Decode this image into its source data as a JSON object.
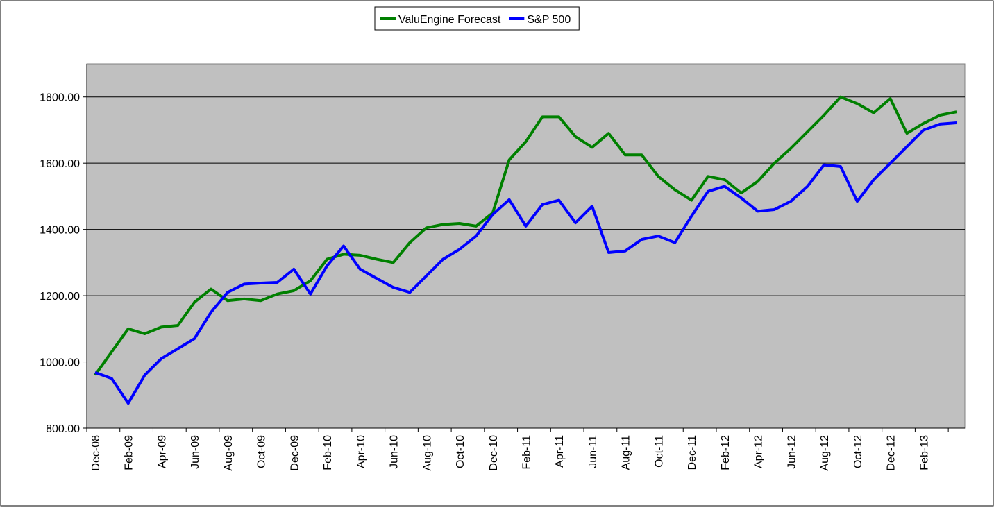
{
  "chart_data": {
    "type": "line",
    "categories": [
      "Dec-08",
      null,
      "Feb-09",
      null,
      "Apr-09",
      null,
      "Jun-09",
      null,
      "Aug-09",
      null,
      "Oct-09",
      null,
      "Dec-09",
      null,
      "Feb-10",
      null,
      "Apr-10",
      null,
      "Jun-10",
      null,
      "Aug-10",
      null,
      "Oct-10",
      null,
      "Dec-10",
      null,
      "Feb-11",
      null,
      "Apr-11",
      null,
      "Jun-11",
      null,
      "Aug-11",
      null,
      "Oct-11",
      null,
      "Dec-11",
      null,
      "Feb-12",
      null,
      "Apr-12",
      null,
      "Jun-12",
      null,
      "Aug-12",
      null,
      "Oct-12",
      null,
      "Dec-12",
      null,
      "Feb-13",
      null,
      null
    ],
    "series": [
      {
        "name": "ValuEngine Forecast",
        "color": "#008000",
        "values": [
          960,
          1030,
          1100,
          1085,
          1105,
          1110,
          1180,
          1220,
          1185,
          1190,
          1185,
          1205,
          1215,
          1245,
          1310,
          1325,
          1322,
          1310,
          1300,
          1360,
          1405,
          1415,
          1418,
          1410,
          1450,
          1610,
          1665,
          1740,
          1740,
          1680,
          1648,
          1690,
          1625,
          1625,
          1560,
          1520,
          1488,
          1560,
          1550,
          1510,
          1545,
          1600,
          1645,
          1695,
          1745,
          1800,
          1780,
          1752,
          1795,
          1690,
          1720,
          1745,
          1755
        ]
      },
      {
        "name": "S&P 500",
        "color": "#0000ff",
        "values": [
          968,
          950,
          875,
          960,
          1010,
          1040,
          1070,
          1150,
          1210,
          1235,
          1238,
          1240,
          1280,
          1205,
          1290,
          1350,
          1280,
          1252,
          1225,
          1210,
          1260,
          1310,
          1340,
          1380,
          1445,
          1490,
          1410,
          1475,
          1488,
          1420,
          1470,
          1330,
          1335,
          1370,
          1380,
          1360,
          1440,
          1515,
          1530,
          1495,
          1455,
          1460,
          1485,
          1530,
          1595,
          1590,
          1485,
          1550,
          1600,
          1650,
          1700,
          1718,
          1722
        ]
      }
    ],
    "ylim": [
      800,
      1900
    ],
    "yticks": [
      {
        "value": 800,
        "label": "800.00"
      },
      {
        "value": 1000,
        "label": "1000.00"
      },
      {
        "value": 1200,
        "label": "1200.00"
      },
      {
        "value": 1400,
        "label": "1400.00"
      },
      {
        "value": 1600,
        "label": "1600.00"
      },
      {
        "value": 1800,
        "label": "1800.00"
      }
    ],
    "grid": true,
    "legend": "top"
  }
}
